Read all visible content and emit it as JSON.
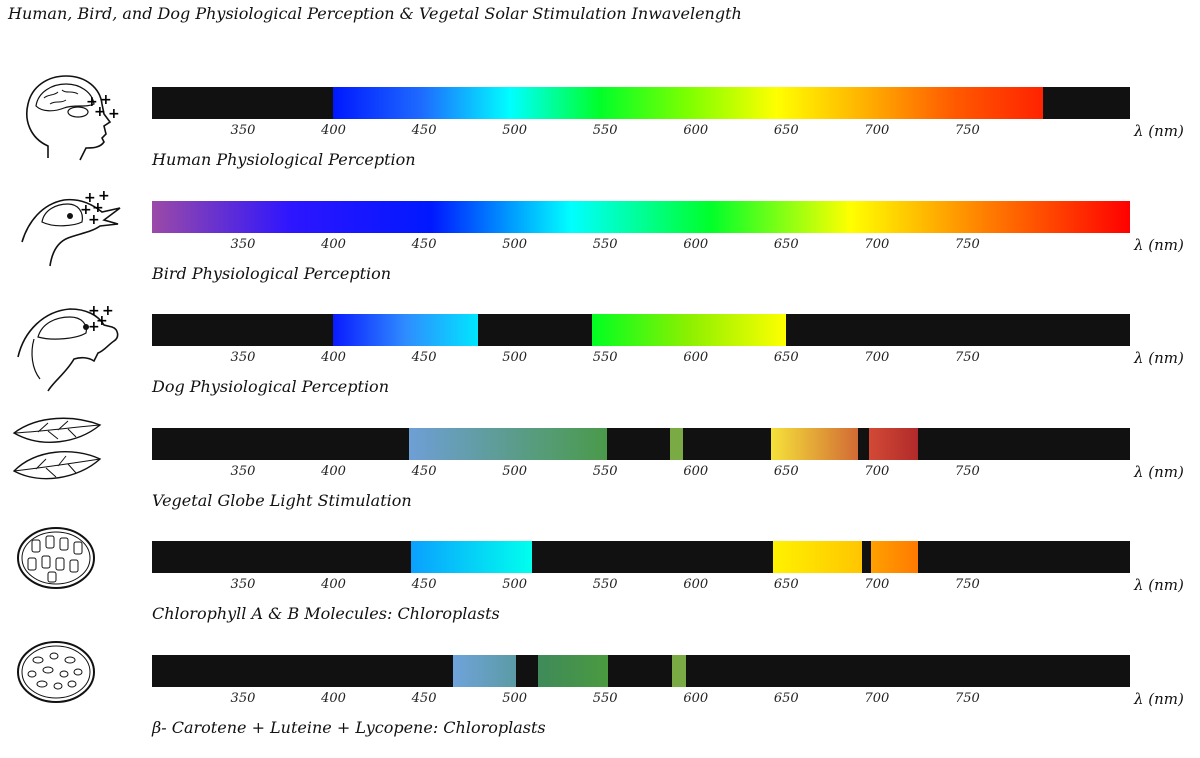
{
  "title": "Human, Bird, and Dog Physiological Perception & Vegetal Solar Stimulation Inwavelength",
  "axis": {
    "ticks": [
      "350",
      "400",
      "450",
      "500",
      "550",
      "600",
      "650",
      "700",
      "750"
    ],
    "unit_label": "λ (nm)"
  },
  "rows": [
    {
      "label": "Human Physiological Perception",
      "icon": "human-head-icon",
      "segments": [
        {
          "kind": "black",
          "from": 300,
          "to": 400
        },
        {
          "kind": "spectrum",
          "from": 400,
          "to": 792
        },
        {
          "kind": "black",
          "from": 792,
          "to": 840
        }
      ]
    },
    {
      "label": "Bird Physiological Perception",
      "icon": "bird-head-icon",
      "segments": [
        {
          "kind": "spectrum-uv",
          "from": 300,
          "to": 840
        }
      ]
    },
    {
      "label": "Dog Physiological Perception",
      "icon": "dog-head-icon",
      "segments": [
        {
          "kind": "black",
          "from": 300,
          "to": 400
        },
        {
          "kind": "gradient",
          "from": 400,
          "to": 480,
          "colors": [
            "#0a1aff",
            "#2f8cff",
            "#00e6ff"
          ]
        },
        {
          "kind": "black",
          "from": 480,
          "to": 543
        },
        {
          "kind": "gradient",
          "from": 543,
          "to": 650,
          "colors": [
            "#00ff22",
            "#8cf000",
            "#ffff00"
          ]
        },
        {
          "kind": "black",
          "from": 650,
          "to": 840
        }
      ]
    },
    {
      "label": "Vegetal Globe Light Stimulation",
      "icon": "leaves-icon",
      "segments": [
        {
          "kind": "black",
          "from": 300,
          "to": 442
        },
        {
          "kind": "gradient",
          "from": 442,
          "to": 551,
          "colors": [
            "#6e9fd6",
            "#4a9a4a"
          ]
        },
        {
          "kind": "black",
          "from": 551,
          "to": 586
        },
        {
          "kind": "gradient",
          "from": 586,
          "to": 593,
          "colors": [
            "#7aaa44",
            "#7aaa44"
          ]
        },
        {
          "kind": "black",
          "from": 593,
          "to": 642
        },
        {
          "kind": "gradient",
          "from": 642,
          "to": 690,
          "colors": [
            "#f5e23a",
            "#d26a35"
          ]
        },
        {
          "kind": "black",
          "from": 690,
          "to": 696
        },
        {
          "kind": "gradient",
          "from": 696,
          "to": 723,
          "colors": [
            "#d24a35",
            "#b12a2a"
          ]
        },
        {
          "kind": "black",
          "from": 723,
          "to": 840
        }
      ]
    },
    {
      "label": "Chlorophyll A & B Molecules: Chloroplasts",
      "icon": "chloroplast-icon",
      "segments": [
        {
          "kind": "black",
          "from": 300,
          "to": 443
        },
        {
          "kind": "gradient",
          "from": 443,
          "to": 510,
          "colors": [
            "#0aa0ff",
            "#00ffee"
          ]
        },
        {
          "kind": "black",
          "from": 510,
          "to": 643
        },
        {
          "kind": "gradient",
          "from": 643,
          "to": 692,
          "colors": [
            "#fff200",
            "#ffc500"
          ]
        },
        {
          "kind": "black",
          "from": 692,
          "to": 697
        },
        {
          "kind": "gradient",
          "from": 697,
          "to": 723,
          "colors": [
            "#ffa000",
            "#ff7a00"
          ]
        },
        {
          "kind": "black",
          "from": 723,
          "to": 840
        }
      ]
    },
    {
      "label": "β- Carotene + Luteine + Lycopene: Chloroplasts",
      "icon": "cell-icon",
      "segments": [
        {
          "kind": "black",
          "from": 300,
          "to": 466
        },
        {
          "kind": "gradient",
          "from": 466,
          "to": 501,
          "colors": [
            "#6fa3da",
            "#5b9ba5"
          ]
        },
        {
          "kind": "black",
          "from": 501,
          "to": 513
        },
        {
          "kind": "gradient",
          "from": 513,
          "to": 552,
          "colors": [
            "#3f8a5a",
            "#4a9a40"
          ]
        },
        {
          "kind": "black",
          "from": 552,
          "to": 587
        },
        {
          "kind": "gradient",
          "from": 587,
          "to": 595,
          "colors": [
            "#7aaa44",
            "#7aaa44"
          ]
        },
        {
          "kind": "black",
          "from": 595,
          "to": 840
        }
      ]
    }
  ],
  "colors": {
    "black_band": "#111111",
    "spectrum": [
      "#0018ff",
      "#1e6bff",
      "#00ffff",
      "#00ff2a",
      "#7dff00",
      "#ffff00",
      "#ffb000",
      "#ff5a00",
      "#ff2200"
    ],
    "spectrum_uv": [
      "#9b4aa6",
      "#2d15ff",
      "#0018ff",
      "#00ffff",
      "#00ff2a",
      "#ffff00",
      "#ff7a00",
      "#ff0000"
    ]
  }
}
